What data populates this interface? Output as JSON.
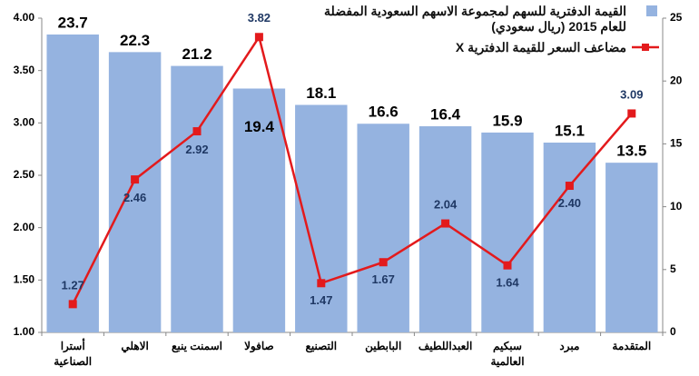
{
  "chart_data": {
    "type": "bar-line",
    "categories": [
      "أسترا\nالصناعية",
      "الاهلي",
      "اسمنت ينبع",
      "صافولا",
      "التصنيع",
      "البابطين",
      "العبداللطيف",
      "سبكيم\nالعالمية",
      "مبرد",
      "المتقدمة"
    ],
    "series": [
      {
        "name": "القيمة الدفترية للسهم لمجموعة الاسهم السعودية المفضلة للعام 2015 (ريال سعودي)",
        "type": "bar",
        "color": "#95b3e0",
        "axis": "y2",
        "values": [
          23.7,
          22.3,
          21.2,
          19.4,
          18.1,
          16.6,
          16.4,
          15.9,
          15.1,
          13.5
        ]
      },
      {
        "name": "مضاعف السعر للقيمة الدفترية X",
        "type": "line",
        "color": "#e31a1c",
        "axis": "y",
        "values": [
          1.27,
          2.46,
          2.92,
          3.82,
          1.47,
          1.67,
          2.04,
          1.64,
          2.4,
          3.09
        ],
        "value_labels": [
          "1.27",
          "2.46",
          "2.92",
          "3.82",
          "1.47",
          "1.67",
          "2.04",
          "1.64",
          "2.40",
          "3.09"
        ]
      }
    ],
    "ylim": [
      1,
      4
    ],
    "yticks": [
      {
        "value": 1,
        "label": "1.00"
      },
      {
        "value": 1.5,
        "label": "1.50"
      },
      {
        "value": 2,
        "label": "2.00"
      },
      {
        "value": 2.5,
        "label": "2.50"
      },
      {
        "value": 3,
        "label": "3.00"
      },
      {
        "value": 3.5,
        "label": "3.50"
      },
      {
        "value": 4,
        "label": "4.00"
      }
    ],
    "y2lim": [
      0,
      25
    ],
    "y2ticks": [
      0,
      5,
      10,
      15,
      20,
      25
    ],
    "grid": false,
    "legend": "top-right"
  }
}
